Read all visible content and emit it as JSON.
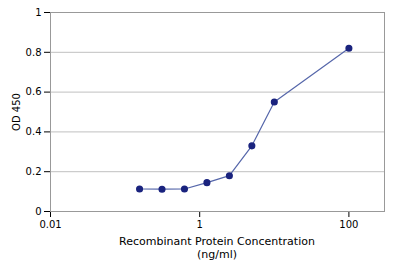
{
  "chart_data": {
    "type": "line",
    "x": [
      0.1563,
      0.3125,
      0.625,
      1.25,
      2.5,
      5.0,
      10.0,
      100.0
    ],
    "values": [
      0.113,
      0.112,
      0.113,
      0.145,
      0.18,
      0.33,
      0.55,
      0.82
    ],
    "xlabel": "Recombinant Protein Concentration\n(ng/ml)",
    "ylabel": "OD 450",
    "log": "x",
    "xlim": [
      0.01,
      300
    ],
    "xticks": [
      0.01,
      1,
      100
    ],
    "ylim": [
      0,
      1.0
    ],
    "yticks": [
      0,
      0.2,
      0.4,
      0.6,
      0.8,
      1
    ],
    "grid": true,
    "color": "#5566aa",
    "colors": [
      "#1a237e",
      "#1a237e",
      "#1a237e",
      "#1a237e",
      "#1a237e",
      "#1a237e",
      "#1a237e",
      "#1a237e"
    ],
    "marker": "circle",
    "line_style": "solid"
  }
}
